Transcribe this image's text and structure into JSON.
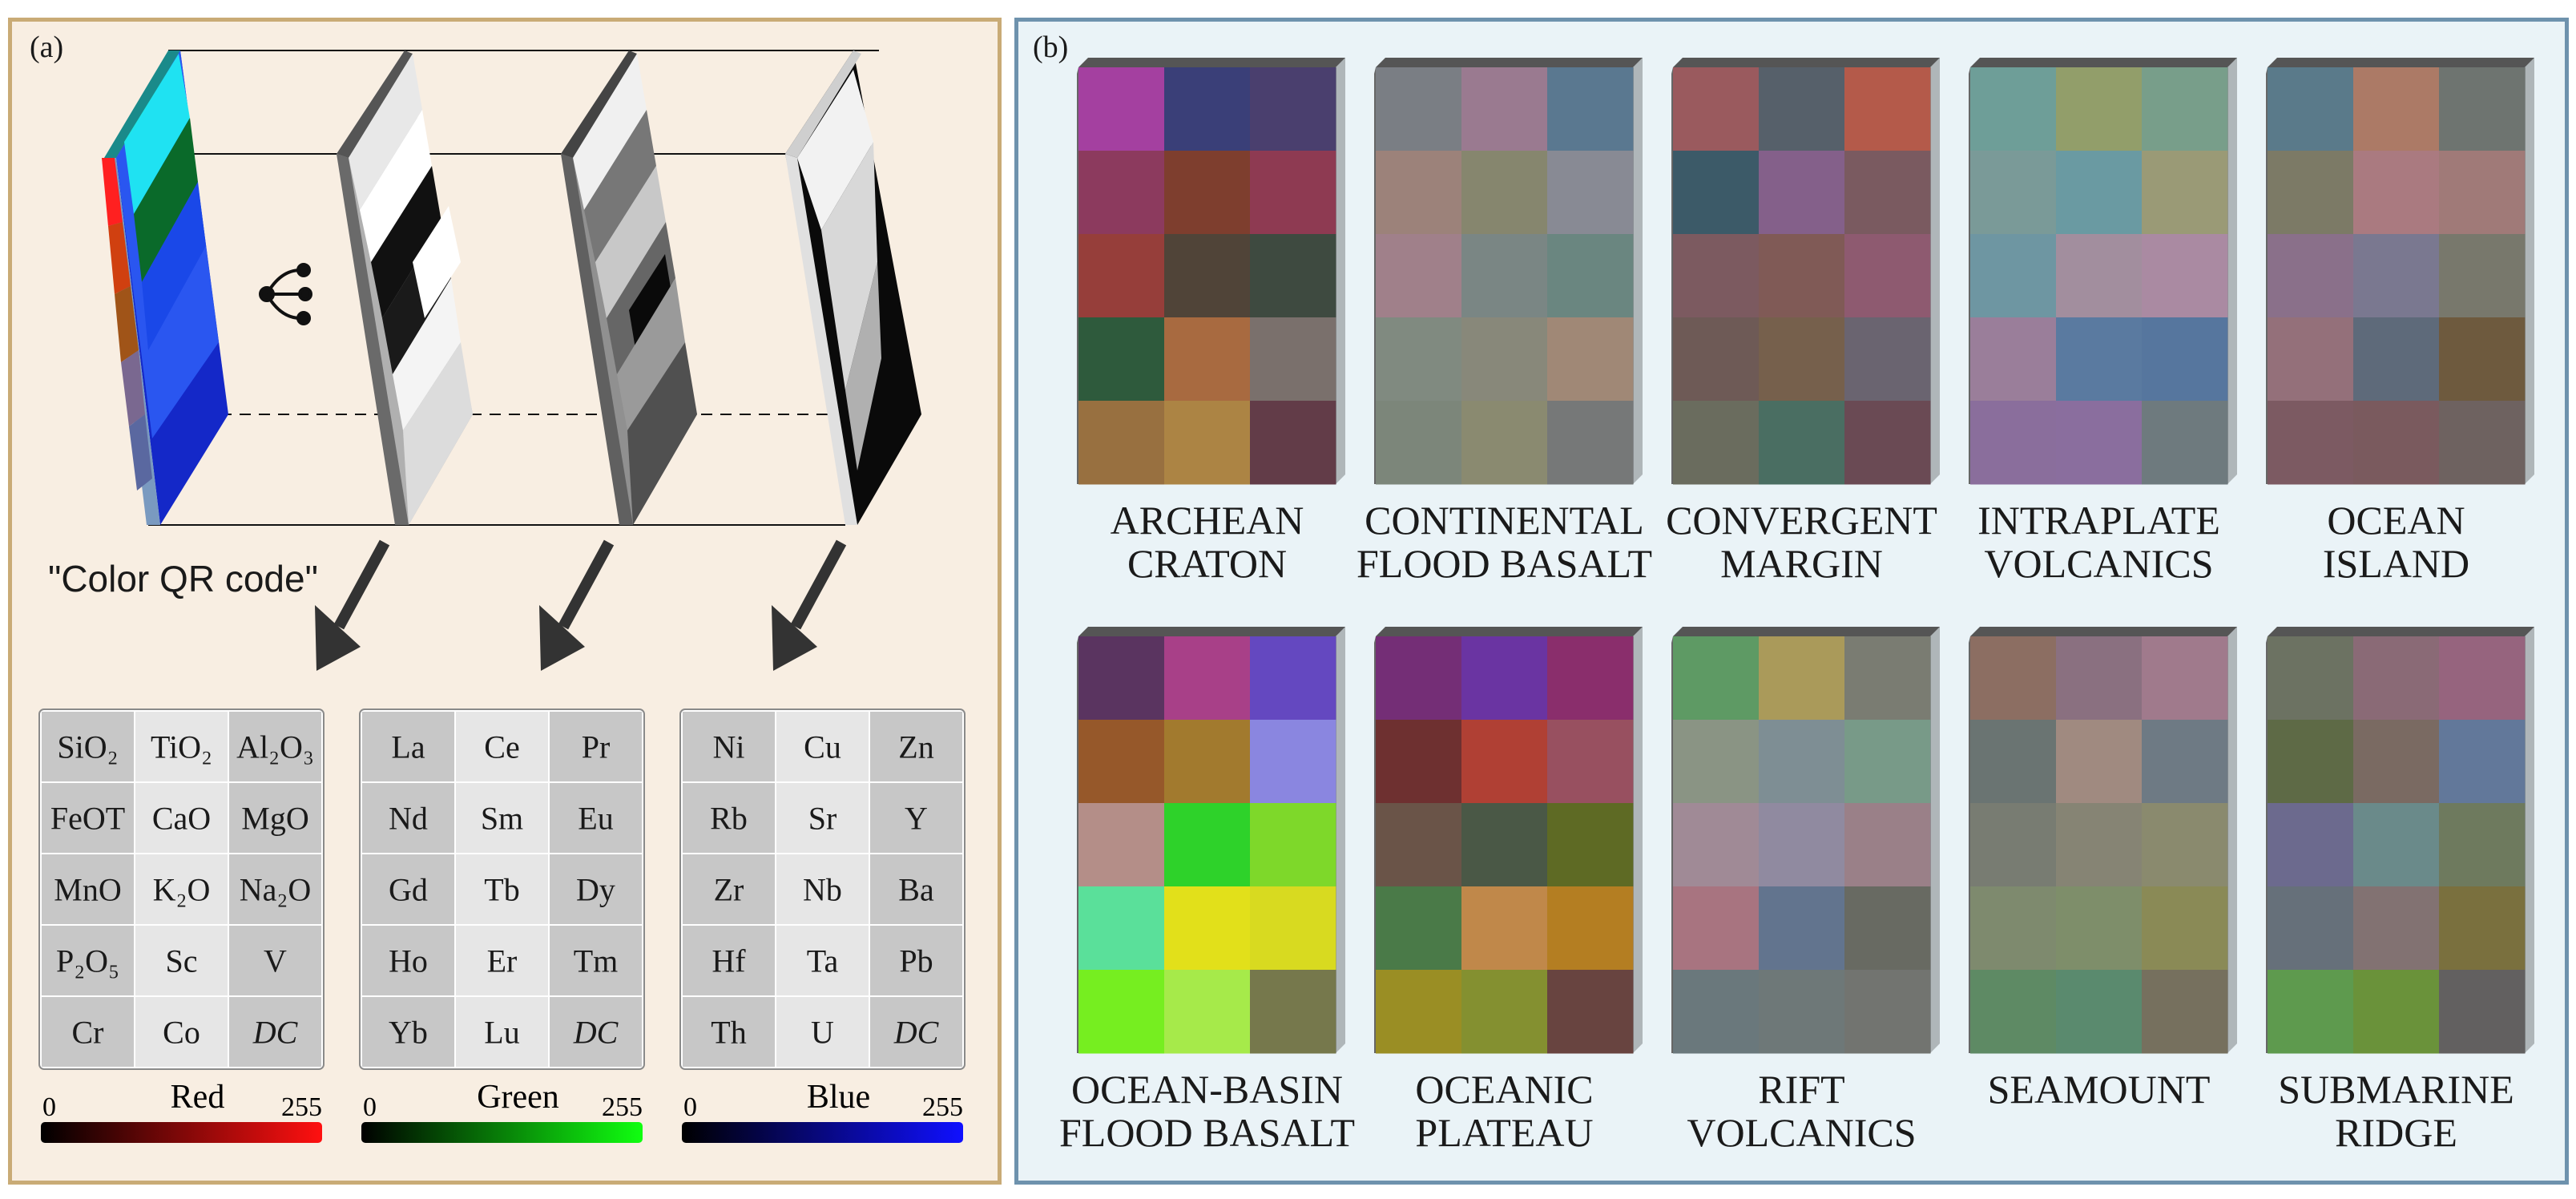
{
  "panel_a": {
    "letter": "(a)",
    "qr_label": "\"Color QR code\"",
    "tables": [
      {
        "channel": "Red",
        "cells": [
          [
            "SiO₂",
            "TiO₂",
            "Al₂O₃"
          ],
          [
            "FeOT",
            "CaO",
            "MgO"
          ],
          [
            "MnO",
            "K₂O",
            "Na₂O"
          ],
          [
            "P₂O₅",
            "Sc",
            "V"
          ],
          [
            "Cr",
            "Co",
            "DC"
          ]
        ],
        "scale_min": "0",
        "scale_max": "255",
        "color": "#ff1010"
      },
      {
        "channel": "Green",
        "cells": [
          [
            "La",
            "Ce",
            "Pr"
          ],
          [
            "Nd",
            "Sm",
            "Eu"
          ],
          [
            "Gd",
            "Tb",
            "Dy"
          ],
          [
            "Ho",
            "Er",
            "Tm"
          ],
          [
            "Yb",
            "Lu",
            "DC"
          ]
        ],
        "scale_min": "0",
        "scale_max": "255",
        "color": "#10ff10"
      },
      {
        "channel": "Blue",
        "cells": [
          [
            "Ni",
            "Cu",
            "Zn"
          ],
          [
            "Rb",
            "Sr",
            "Y"
          ],
          [
            "Zr",
            "Nb",
            "Ba"
          ],
          [
            "Hf",
            "Ta",
            "Pb"
          ],
          [
            "Th",
            "U",
            "DC"
          ]
        ],
        "scale_min": "0",
        "scale_max": "255",
        "color": "#1010ff"
      }
    ]
  },
  "panel_b": {
    "letter": "(b)",
    "tiles": [
      {
        "label": [
          "ARCHEAN",
          "CRATON"
        ],
        "colors": [
          [
            "#a440a0",
            "#3a3f78",
            "#4a3f6e"
          ],
          [
            "#8c3a5e",
            "#7e3e2e",
            "#8e3a52"
          ],
          [
            "#963e3a",
            "#504438",
            "#3e4a40"
          ],
          [
            "#2e5a3c",
            "#a86a40",
            "#7a706c"
          ],
          [
            "#987040",
            "#ac8444",
            "#623c48"
          ]
        ]
      },
      {
        "label": [
          "CONTINENTAL",
          "FLOOD BASALT"
        ],
        "colors": [
          [
            "#7a7e84",
            "#9a7a90",
            "#5a7890"
          ],
          [
            "#9c827a",
            "#86866e",
            "#888a94"
          ],
          [
            "#a0808a",
            "#7a8684",
            "#6a8680"
          ],
          [
            "#808a80",
            "#88887a",
            "#a08876"
          ],
          [
            "#7c867a",
            "#8a8a70",
            "#767878"
          ]
        ]
      },
      {
        "label": [
          "CONVERGENT",
          "MARGIN"
        ],
        "colors": [
          [
            "#9a5a5e",
            "#56606a",
            "#b45a4a"
          ],
          [
            "#3c5a68",
            "#84608a",
            "#7a5a60"
          ],
          [
            "#7c5a60",
            "#805a56",
            "#8e5a70"
          ],
          [
            "#6e5a56",
            "#76604c",
            "#6a6470"
          ],
          [
            "#6a6c5e",
            "#4a6e62",
            "#6a4a54"
          ]
        ]
      },
      {
        "label": [
          "INTRAPLATE",
          "VOLCANICS"
        ],
        "colors": [
          [
            "#6e9e98",
            "#929e6a",
            "#789e8a"
          ],
          [
            "#7a9a98",
            "#6a9aa2",
            "#9a9a76"
          ],
          [
            "#6e96a2",
            "#a28e9e",
            "#aa8aa2"
          ],
          [
            "#9a7e9a",
            "#5a7aa0",
            "#56769e"
          ],
          [
            "#8a6e9c",
            "#8a6e9e",
            "#6e7a7e"
          ]
        ]
      },
      {
        "label": [
          "OCEAN",
          "ISLAND"
        ],
        "colors": [
          [
            "#5a7a8a",
            "#ac7a66",
            "#6e7470"
          ],
          [
            "#7c7a66",
            "#aa7a80",
            "#a07a78"
          ],
          [
            "#8a708a",
            "#7a7890",
            "#78786c"
          ],
          [
            "#94707a",
            "#5e6a7a",
            "#6e5a3e"
          ],
          [
            "#7c5a62",
            "#7a5a5e",
            "#6e6260"
          ]
        ]
      },
      {
        "label": [
          "OCEAN-BASIN",
          "FLOOD BASALT"
        ],
        "colors": [
          [
            "#5a3460",
            "#a84088",
            "#6448c0"
          ],
          [
            "#96582a",
            "#a27a2e",
            "#8a86e0"
          ],
          [
            "#b48e88",
            "#2ed22a",
            "#7ed82a"
          ],
          [
            "#5ae09a",
            "#e2e01a",
            "#d8da20"
          ],
          [
            "#76ee20",
            "#a6ea4a",
            "#76784c"
          ]
        ]
      },
      {
        "label": [
          "OCEANIC",
          "PLATEAU"
        ],
        "colors": [
          [
            "#742e76",
            "#6a34a2",
            "#8a2e6c"
          ],
          [
            "#6e3030",
            "#b04034",
            "#985060"
          ],
          [
            "#6a5448",
            "#4a5846",
            "#5e6a24"
          ],
          [
            "#4a7a48",
            "#c0884a",
            "#b47e22"
          ],
          [
            "#9a8e24",
            "#849030",
            "#684440"
          ]
        ]
      },
      {
        "label": [
          "RIFT",
          "VOLCANICS"
        ],
        "colors": [
          [
            "#5e9a64",
            "#aa9a5a",
            "#7a7c72"
          ],
          [
            "#8a9484",
            "#7e8e94",
            "#789a88"
          ],
          [
            "#a08a96",
            "#908aa0",
            "#9a8088"
          ],
          [
            "#a87480",
            "#62748e",
            "#686a62"
          ],
          [
            "#6a787c",
            "#6e7878",
            "#727470"
          ]
        ]
      },
      {
        "label": [
          "SEAMOUNT",
          ""
        ],
        "colors": [
          [
            "#8c6e62",
            "#8a7080",
            "#a07a8c"
          ],
          [
            "#6a7472",
            "#a08a80",
            "#6e7a84"
          ],
          [
            "#787c72",
            "#868474",
            "#8a8a6e"
          ],
          [
            "#7e8a6e",
            "#7e8e6a",
            "#8a8a56"
          ],
          [
            "#5e8a64",
            "#5a8a6e",
            "#76705e"
          ]
        ]
      },
      {
        "label": [
          "SUBMARINE",
          "RIDGE"
        ],
        "colors": [
          [
            "#6c7262",
            "#8a6a76",
            "#96647e"
          ],
          [
            "#5e6a46",
            "#7a6a62",
            "#62789a"
          ],
          [
            "#6c6a8e",
            "#6a8a8a",
            "#6e7a5e"
          ],
          [
            "#66707a",
            "#827272",
            "#7a703e"
          ],
          [
            "#5e9a4e",
            "#6a923a",
            "#626060"
          ]
        ]
      }
    ]
  }
}
